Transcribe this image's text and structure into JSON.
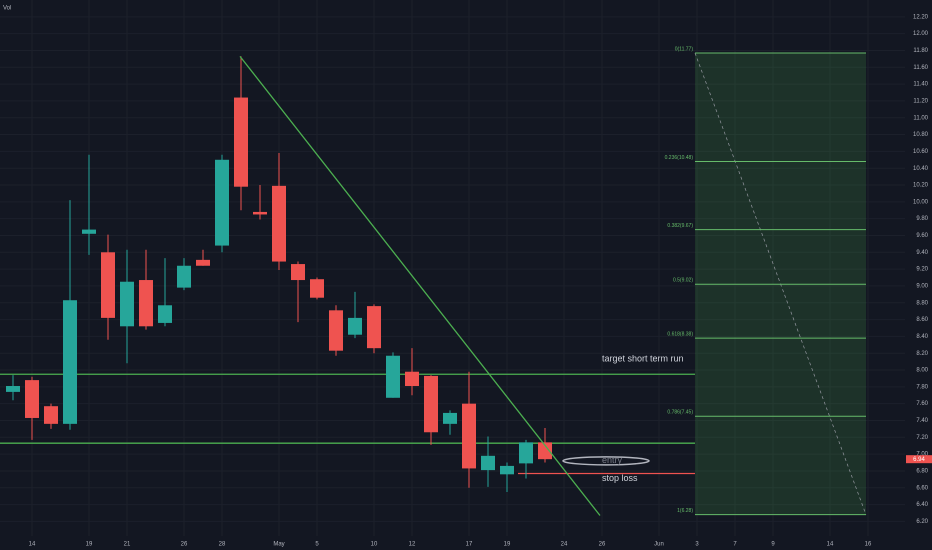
{
  "chart_data": {
    "type": "candlestick",
    "volume_label": "Vol",
    "categories": [
      null,
      "14",
      null,
      null,
      "19",
      null,
      "21",
      null,
      null,
      "26",
      null,
      "28",
      null,
      null,
      "May",
      null,
      "5",
      null,
      null,
      "10",
      null,
      "12",
      null,
      null,
      "17",
      null,
      "19",
      null,
      null,
      "24",
      null,
      "26",
      null,
      null,
      "Jun",
      null,
      "3",
      null,
      "7",
      null,
      "9",
      null,
      null,
      "14",
      null,
      "16"
    ],
    "open": [
      7.74,
      7.88,
      7.57,
      7.36,
      9.62,
      9.4,
      8.52,
      9.07,
      8.56,
      8.98,
      9.31,
      9.48,
      11.24,
      9.88,
      10.19,
      9.26,
      9.08,
      8.71,
      8.42,
      8.76,
      7.67,
      7.98,
      7.93,
      7.36,
      7.6,
      6.81,
      6.76,
      6.89,
      7.14,
      null,
      null,
      null,
      null,
      null,
      null,
      null,
      null,
      null,
      null,
      null,
      null,
      null,
      null,
      null,
      null,
      null
    ],
    "high": [
      7.94,
      7.92,
      7.6,
      10.02,
      10.56,
      9.61,
      9.43,
      9.43,
      9.33,
      9.33,
      9.43,
      10.56,
      11.73,
      10.2,
      10.58,
      9.29,
      9.1,
      8.77,
      8.93,
      8.78,
      8.21,
      8.26,
      7.94,
      7.52,
      7.98,
      7.21,
      6.9,
      7.17,
      7.31,
      null,
      null,
      null,
      null,
      null,
      null,
      null,
      null,
      null,
      null,
      null,
      null,
      null,
      null,
      null,
      null,
      null
    ],
    "low": [
      7.64,
      7.17,
      7.3,
      7.29,
      9.37,
      8.36,
      8.08,
      8.48,
      8.52,
      8.95,
      9.24,
      9.4,
      9.9,
      9.79,
      9.19,
      8.57,
      8.84,
      8.17,
      8.38,
      8.2,
      7.67,
      7.7,
      7.11,
      7.23,
      6.6,
      6.61,
      6.55,
      6.71,
      6.9,
      null,
      null,
      null,
      null,
      null,
      null,
      null,
      null,
      null,
      null,
      null,
      null,
      null,
      null,
      null,
      null,
      null
    ],
    "close": [
      7.81,
      7.43,
      7.36,
      8.83,
      9.67,
      8.62,
      9.05,
      8.52,
      8.77,
      9.24,
      9.24,
      10.5,
      10.18,
      9.85,
      9.29,
      9.07,
      8.86,
      8.23,
      8.62,
      8.26,
      8.17,
      7.81,
      7.26,
      7.49,
      6.83,
      6.98,
      6.86,
      7.14,
      6.94,
      null,
      null,
      null,
      null,
      null,
      null,
      null,
      null,
      null,
      null,
      null,
      null,
      null,
      null,
      null,
      null,
      null
    ],
    "up_color": "#26a69a",
    "down_color": "#ef5350",
    "ylim": [
      5.86,
      12.4
    ],
    "yticks": [
      {
        "value": 6.2,
        "label": "6.20"
      },
      {
        "value": 6.4,
        "label": "6.40"
      },
      {
        "value": 6.6,
        "label": "6.60"
      },
      {
        "value": 6.8,
        "label": "6.80"
      },
      {
        "value": 7.0,
        "label": "7.00"
      },
      {
        "value": 7.2,
        "label": "7.20"
      },
      {
        "value": 7.4,
        "label": "7.40"
      },
      {
        "value": 7.6,
        "label": "7.60"
      },
      {
        "value": 7.8,
        "label": "7.80"
      },
      {
        "value": 8.0,
        "label": "8.00"
      },
      {
        "value": 8.2,
        "label": "8.20"
      },
      {
        "value": 8.4,
        "label": "8.40"
      },
      {
        "value": 8.6,
        "label": "8.60"
      },
      {
        "value": 8.8,
        "label": "8.80"
      },
      {
        "value": 9.0,
        "label": "9.00"
      },
      {
        "value": 9.2,
        "label": "9.20"
      },
      {
        "value": 9.4,
        "label": "9.40"
      },
      {
        "value": 9.6,
        "label": "9.60"
      },
      {
        "value": 9.8,
        "label": "9.80"
      },
      {
        "value": 10.0,
        "label": "10.00"
      },
      {
        "value": 10.2,
        "label": "10.20"
      },
      {
        "value": 10.4,
        "label": "10.40"
      },
      {
        "value": 10.6,
        "label": "10.60"
      },
      {
        "value": 10.8,
        "label": "10.80"
      },
      {
        "value": 11.0,
        "label": "11.00"
      },
      {
        "value": 11.2,
        "label": "11.20"
      },
      {
        "value": 11.4,
        "label": "11.40"
      },
      {
        "value": 11.6,
        "label": "11.60"
      },
      {
        "value": 11.8,
        "label": "11.80"
      },
      {
        "value": 12.0,
        "label": "12.00"
      },
      {
        "value": 12.2,
        "label": "12.20"
      }
    ],
    "target_line": {
      "label": "target short term run",
      "value": 7.95
    },
    "support_line": {
      "value": 7.13
    },
    "entry": {
      "label": "entry",
      "value": 6.92
    },
    "stop_loss": {
      "label": "stop loss",
      "value": 6.77
    },
    "trendline": {
      "start": 11.73,
      "end": 6.27
    },
    "last_price": 6.94,
    "fib_levels": [
      {
        "value": 11.77,
        "label": "0(11.77)"
      },
      {
        "value": 10.48,
        "label": "0.236(10.48)"
      },
      {
        "value": 9.67,
        "label": "0.382(9.67)"
      },
      {
        "value": 9.02,
        "label": "0.5(9.02)"
      },
      {
        "value": 8.38,
        "label": "0.618(8.38)"
      },
      {
        "value": 7.45,
        "label": "0.786(7.45)"
      },
      {
        "value": 6.28,
        "label": "1(6.28)"
      }
    ]
  }
}
